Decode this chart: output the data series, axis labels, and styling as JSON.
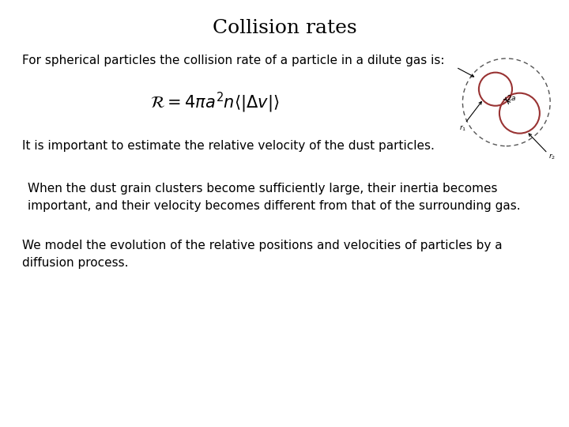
{
  "title": "Collision rates",
  "title_fontsize": 18,
  "title_fontweight": "normal",
  "background_color": "#ffffff",
  "text_color": "#000000",
  "line1": "For spherical particles the collision rate of a particle in a dilute gas is:",
  "line1_fontsize": 11,
  "formula": "$\\mathcal{R} = 4\\pi a^2 n\\langle|\\Delta v|\\rangle$",
  "formula_fontsize": 15,
  "line2": "It is important to estimate the relative velocity of the dust particles.",
  "line2_fontsize": 11,
  "line3a": "When the dust grain clusters become sufficiently large, their inertia becomes",
  "line3b": "important, and their velocity becomes different from that of the surrounding gas.",
  "line3_fontsize": 11,
  "line4a": "We model the evolution of the relative positions and velocities of particles by a",
  "line4b": "diffusion process.",
  "line4_fontsize": 11,
  "circle_color": "#993333",
  "circle_linewidth": 1.5,
  "dashed_circle_color": "#555555",
  "arrow_color": "#000000"
}
